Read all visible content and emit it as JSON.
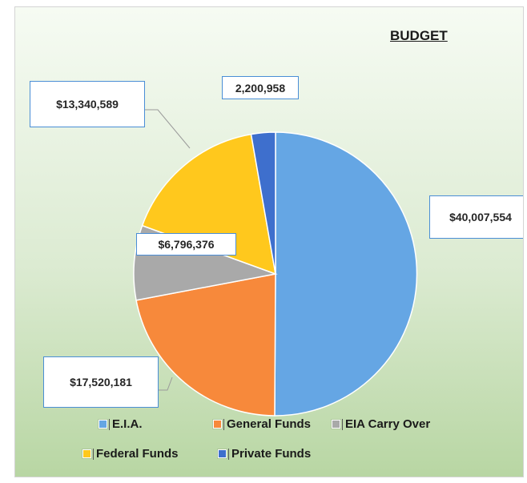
{
  "chart_data": {
    "type": "pie",
    "title": "BUDGET",
    "categories": [
      "E.I.A.",
      "General Funds",
      "EIA Carry Over",
      "Federal Funds",
      "Private Funds"
    ],
    "values": [
      40007554,
      17520181,
      6796376,
      13340589,
      2200958
    ],
    "data_labels": [
      "$40,007,554",
      "$17,520,181",
      "$6,796,376",
      "$13,340,589",
      "2,200,958"
    ],
    "colors": [
      "#65a6e4",
      "#f7893b",
      "#a9a9a9",
      "#ffc81d",
      "#3e6fcd"
    ],
    "legend": {
      "position": "bottom",
      "entries": [
        "E.I.A.",
        "General Funds",
        "EIA Carry Over",
        "Federal Funds",
        "Private Funds"
      ]
    }
  }
}
